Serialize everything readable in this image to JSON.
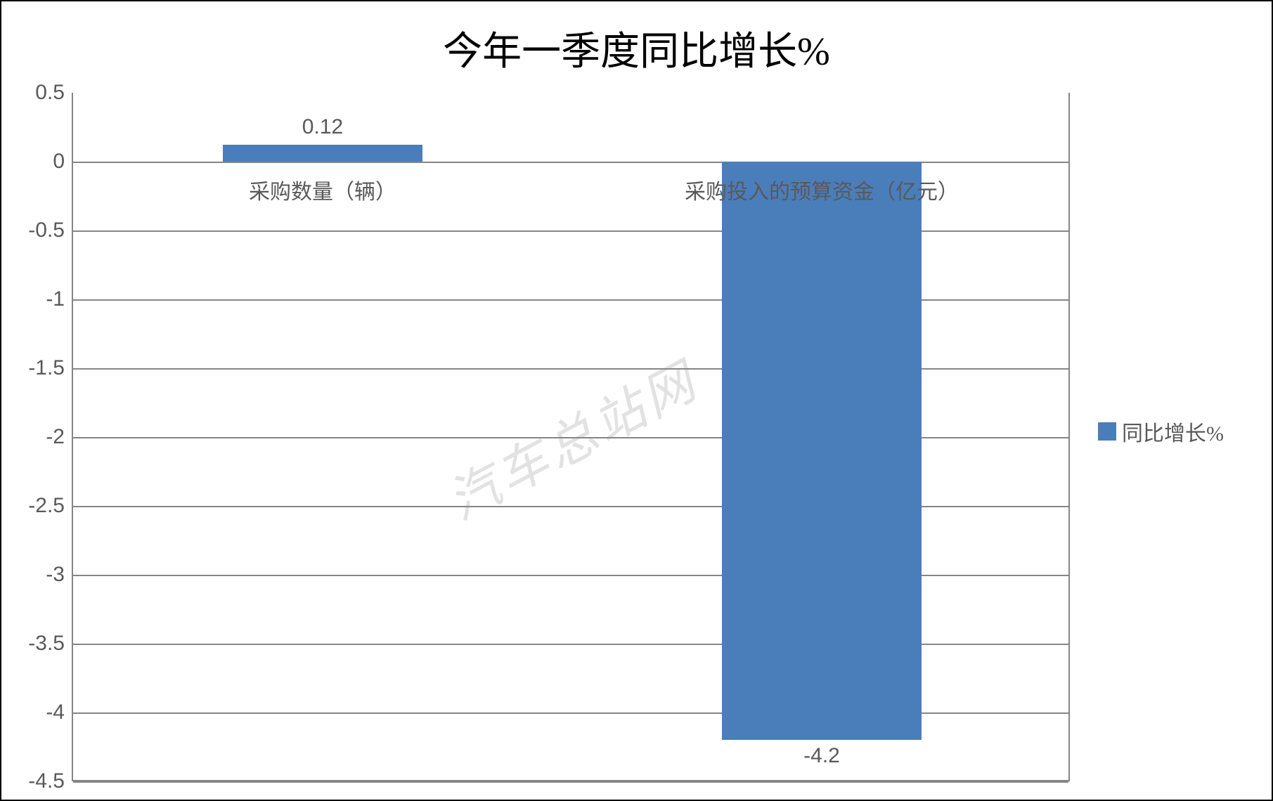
{
  "chart": {
    "type": "bar",
    "title": "今年一季度同比增长%",
    "title_fontsize": 56,
    "background_color": "#ffffff",
    "border_color": "#000000",
    "grid_color": "#868686",
    "tick_color": "#595959",
    "tick_fontsize": 30,
    "bar_color": "#4a7ebb",
    "bar_width": 0.4,
    "categories": [
      "采购数量（辆）",
      "采购投入的预算资金（亿元）"
    ],
    "values": [
      0.12,
      -4.2
    ],
    "ylim_min": -4.5,
    "ylim_max": 0.5,
    "ytick_step": 0.5,
    "legend_label": "同比增长%",
    "watermark": "汽车总站网"
  }
}
